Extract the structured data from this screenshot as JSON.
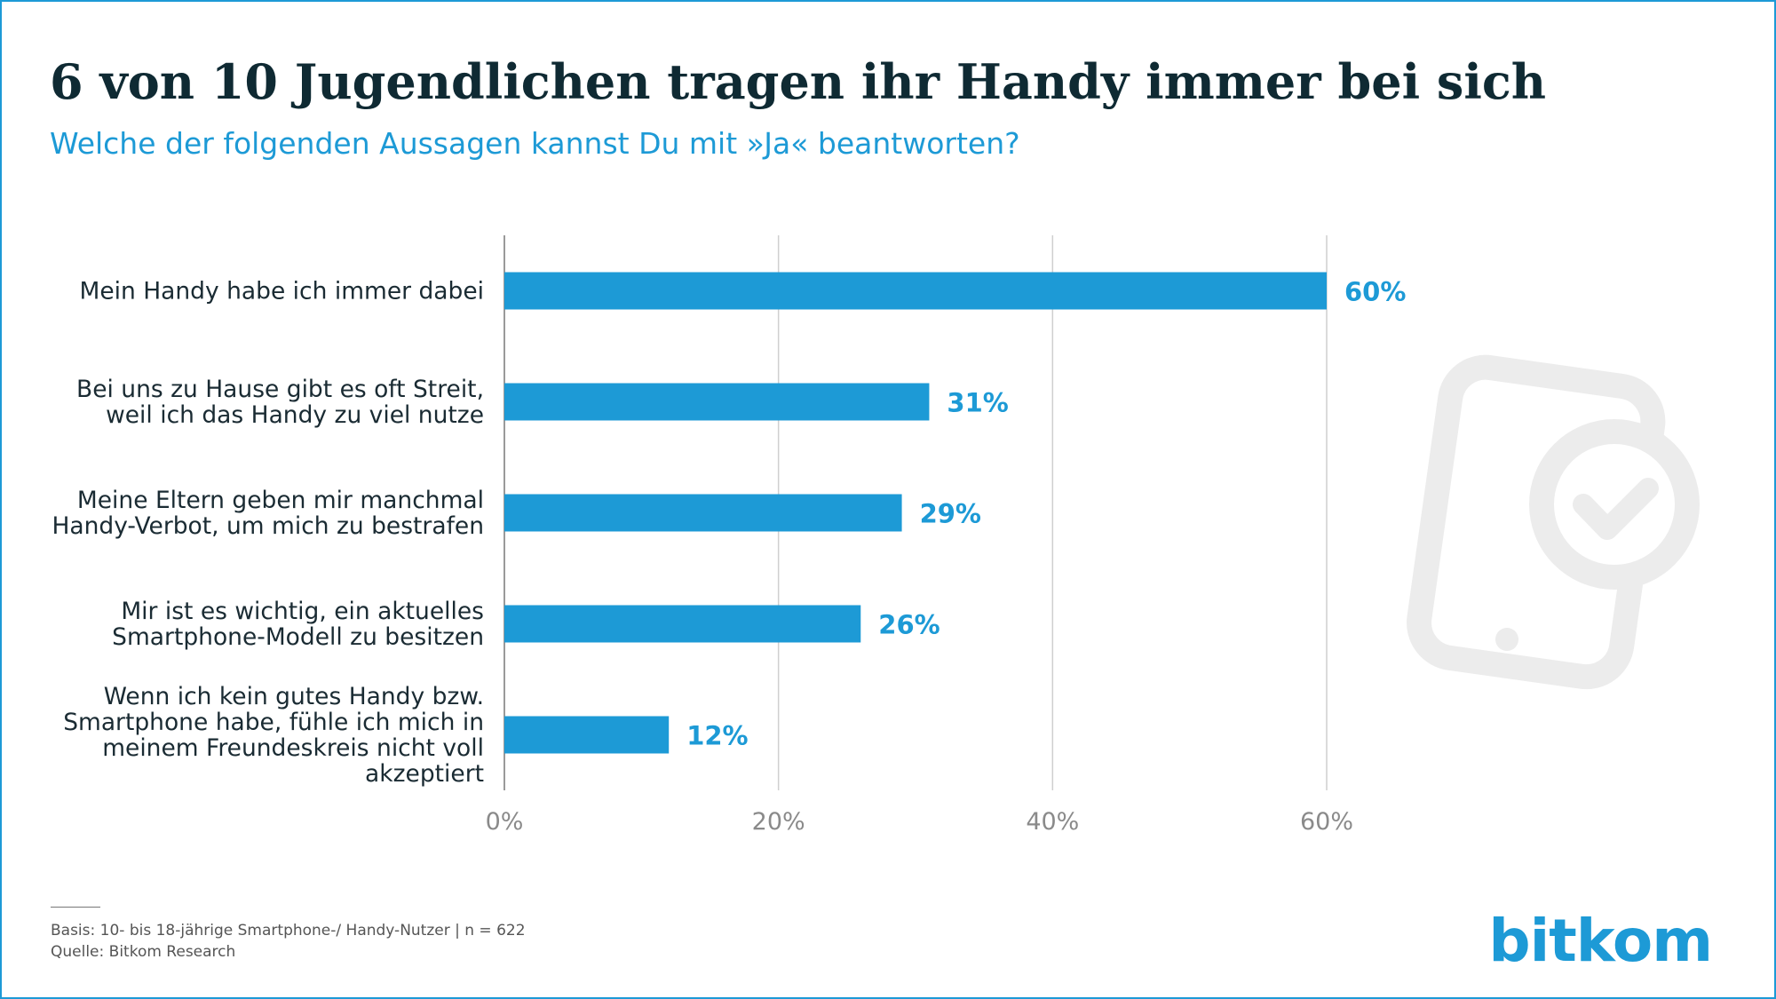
{
  "header": {
    "title": "6 von 10 Jugendlichen tragen ihr Handy immer bei sich",
    "subtitle": "Welche der folgenden Aussagen kannst Du mit »Ja« beantworten?"
  },
  "chart_data": {
    "type": "bar",
    "orientation": "horizontal",
    "categories": [
      [
        "Mein Handy habe ich immer dabei"
      ],
      [
        "Bei uns zu Hause gibt es oft Streit,",
        "weil ich das Handy zu viel nutze"
      ],
      [
        "Meine Eltern geben mir manchmal",
        "Handy-Verbot, um mich zu bestrafen"
      ],
      [
        "Mir ist es wichtig, ein aktuelles",
        "Smartphone-Modell zu besitzen"
      ],
      [
        "Wenn ich kein gutes Handy bzw.",
        "Smartphone habe, fühle ich mich in",
        "meinem Freundeskreis nicht voll",
        "akzeptiert"
      ]
    ],
    "values": [
      60,
      31,
      29,
      26,
      12
    ],
    "value_labels": [
      "60%",
      "31%",
      "29%",
      "26%",
      "12%"
    ],
    "xlim": [
      0,
      60
    ],
    "x_ticks": [
      0,
      20,
      40,
      60
    ],
    "x_tick_labels": [
      "0%",
      "20%",
      "40%",
      "60%"
    ],
    "grid": true,
    "bar_color": "#1d9ad6",
    "grid_color": "#cfcfcf"
  },
  "footer": {
    "basis": "Basis: 10- bis 18-jährige Smartphone-/ Handy-Nutzer | n = 622",
    "source": "Quelle: Bitkom Research",
    "logo": "bitkom"
  },
  "decor": {
    "icon": "smartphone-check-icon",
    "icon_color": "#ececec"
  },
  "colors": {
    "accent": "#1d9ad6",
    "title": "#0f2a33",
    "frame": "#1d9ad6"
  }
}
